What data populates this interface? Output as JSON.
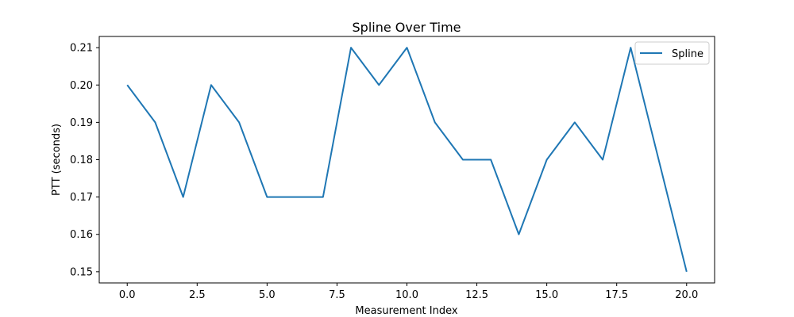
{
  "chart_data": {
    "type": "line",
    "title": "Spline Over Time",
    "xlabel": "Measurement Index",
    "ylabel": "PTT (seconds)",
    "x": [
      0,
      1,
      2,
      3,
      4,
      5,
      6,
      7,
      8,
      9,
      10,
      11,
      12,
      13,
      14,
      15,
      16,
      17,
      18,
      19,
      20
    ],
    "series": [
      {
        "name": "Spline",
        "color": "#1f77b4",
        "values": [
          0.2,
          0.19,
          0.17,
          0.2,
          0.19,
          0.17,
          0.17,
          0.17,
          0.21,
          0.2,
          0.21,
          0.19,
          0.18,
          0.18,
          0.16,
          0.18,
          0.19,
          0.18,
          0.21,
          0.18,
          0.15
        ]
      }
    ],
    "xlim": [
      -1,
      21
    ],
    "ylim": [
      0.147,
      0.213
    ],
    "xticks": [
      0.0,
      2.5,
      5.0,
      7.5,
      10.0,
      12.5,
      15.0,
      17.5,
      20.0
    ],
    "xtick_labels": [
      "0.0",
      "2.5",
      "5.0",
      "7.5",
      "10.0",
      "12.5",
      "15.0",
      "17.5",
      "20.0"
    ],
    "yticks": [
      0.15,
      0.16,
      0.17,
      0.18,
      0.19,
      0.2,
      0.21
    ],
    "ytick_labels": [
      "0.15",
      "0.16",
      "0.17",
      "0.18",
      "0.19",
      "0.20",
      "0.21"
    ],
    "grid": false,
    "legend_position": "top-right"
  }
}
